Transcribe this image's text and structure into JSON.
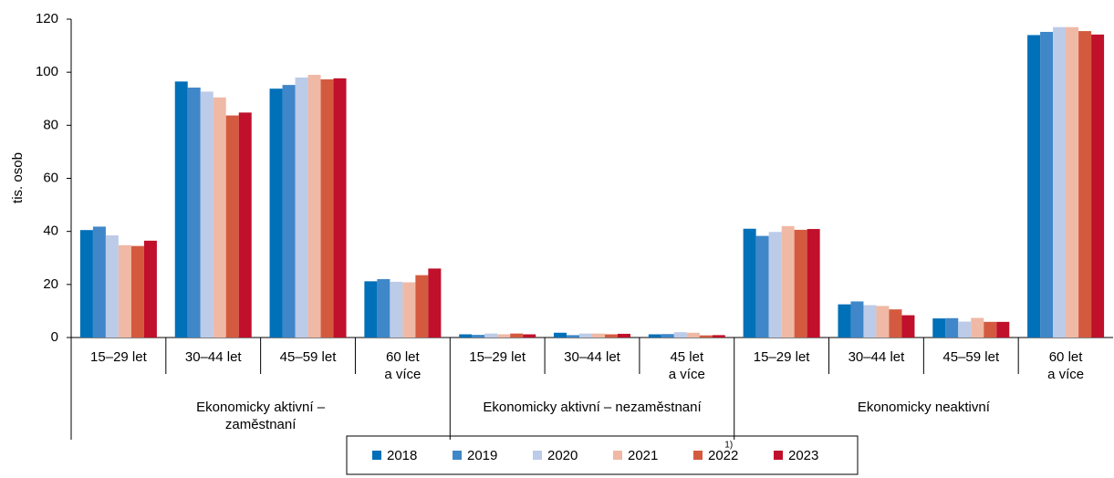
{
  "chart_data": {
    "type": "bar",
    "y_label": "tis. osob",
    "note": "1)",
    "groups": [
      {
        "name": "Ekonomicky aktivní –\nzaměstnaní",
        "categories": [
          "15–29 let",
          "30–44 let",
          "45–59 let",
          "60 let\na více"
        ]
      },
      {
        "name": "Ekonomicky aktivní – nezaměstnaní",
        "categories": [
          "15–29 let",
          "30–44 let",
          "45 let\na více"
        ]
      },
      {
        "name": "Ekonomicky neaktivní",
        "categories": [
          "15–29 let",
          "30–44 let",
          "45–59 let",
          "60 let\na více"
        ]
      }
    ],
    "series": [
      {
        "name": "2018",
        "color": "#0070b8",
        "values": [
          40.5,
          96.5,
          93.8,
          21.2,
          1.2,
          1.8,
          1.2,
          41,
          12.5,
          7.2,
          114
        ]
      },
      {
        "name": "2019",
        "color": "#3f87c9",
        "values": [
          41.8,
          94.2,
          95.2,
          22,
          1.0,
          0.9,
          1.3,
          38.3,
          13.6,
          7.3,
          115.2
        ]
      },
      {
        "name": "2020",
        "color": "#bccbe8",
        "values": [
          38.5,
          92.7,
          98,
          21,
          1.5,
          1.5,
          2.0,
          39.8,
          12.2,
          6,
          117
        ]
      },
      {
        "name": "2021",
        "color": "#efb9a5",
        "values": [
          34.8,
          90.5,
          99,
          20.8,
          1.2,
          1.5,
          1.8,
          42,
          11.9,
          7.4,
          117
        ]
      },
      {
        "name": "2022",
        "color": "#d45a3f",
        "values": [
          34.5,
          83.7,
          97.3,
          23.5,
          1.5,
          1.2,
          0.8,
          40.6,
          10.6,
          5.9,
          115.5
        ]
      },
      {
        "name": "2023",
        "color": "#c0102b",
        "values": [
          36.5,
          84.8,
          97.7,
          26,
          1.2,
          1.4,
          0.9,
          40.9,
          8.4,
          5.9,
          114.2
        ]
      }
    ],
    "ylim": [
      0,
      120
    ],
    "yticks": [
      0,
      20,
      40,
      60,
      80,
      100,
      120
    ],
    "grid": false
  }
}
